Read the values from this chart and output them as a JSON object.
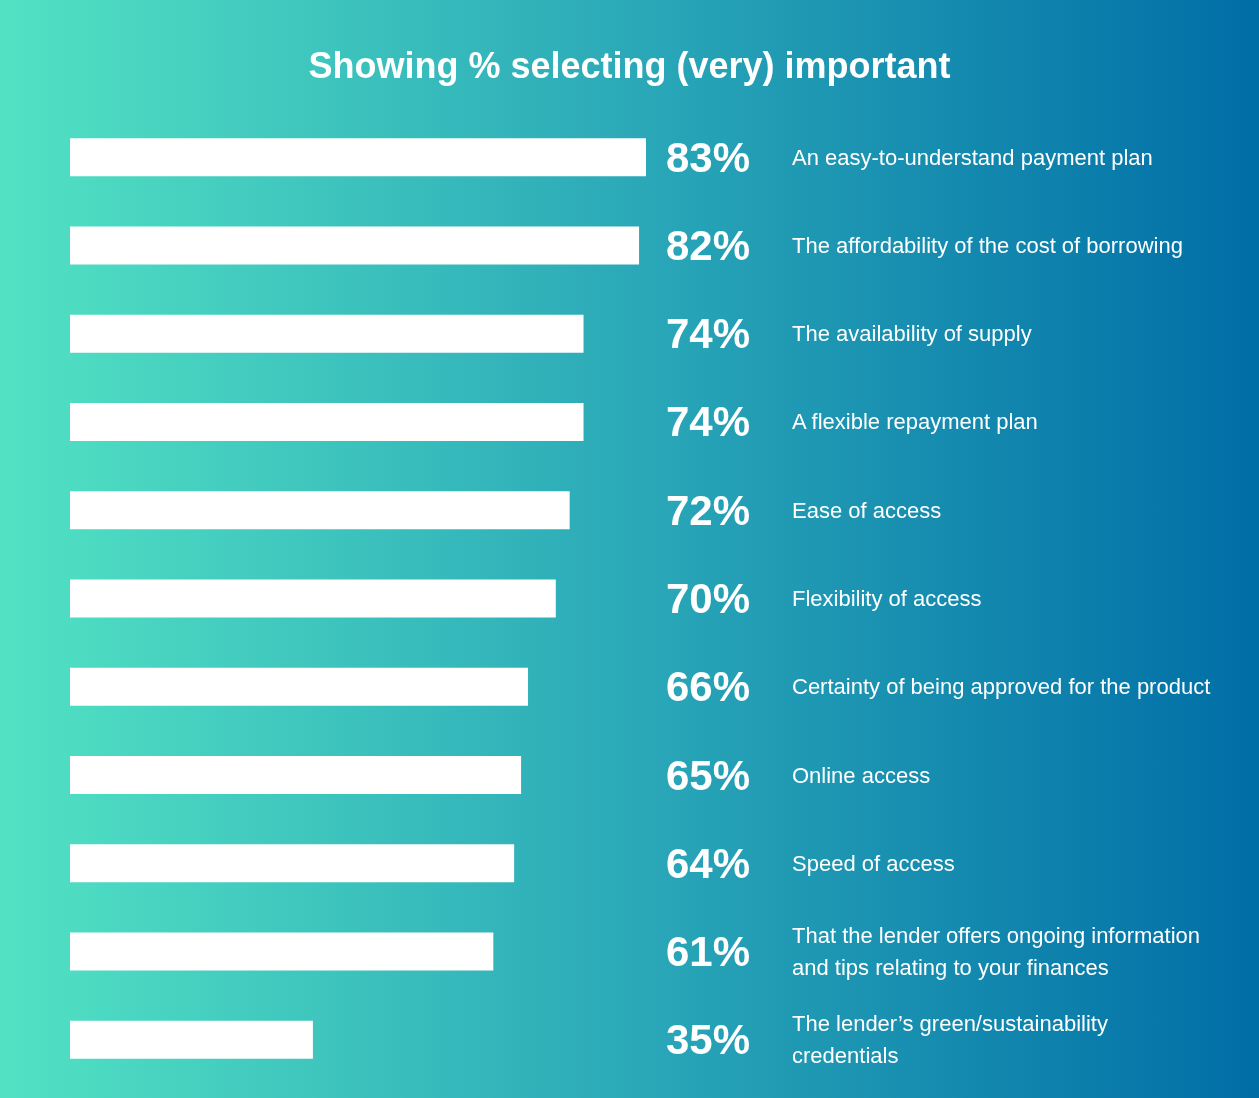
{
  "chart_data": {
    "type": "bar",
    "orientation": "horizontal",
    "title": "Showing % selecting (very) important",
    "categories": [
      "An easy-to-understand payment plan",
      "The affordability of the cost of borrowing",
      "The availability of supply",
      "A flexible repayment plan",
      "Ease of access",
      "Flexibility of access",
      "Certainty of being approved for the product",
      "Online access",
      "Speed of access",
      "That the lender offers ongoing information and tips relating to your finances",
      "The lender’s green/sustainability credentials"
    ],
    "values": [
      83,
      82,
      74,
      74,
      72,
      70,
      66,
      65,
      64,
      61,
      35
    ],
    "value_labels": [
      "83%",
      "82%",
      "74%",
      "74%",
      "72%",
      "70%",
      "66%",
      "65%",
      "64%",
      "61%",
      "35%"
    ],
    "color": "#ffffff"
  }
}
